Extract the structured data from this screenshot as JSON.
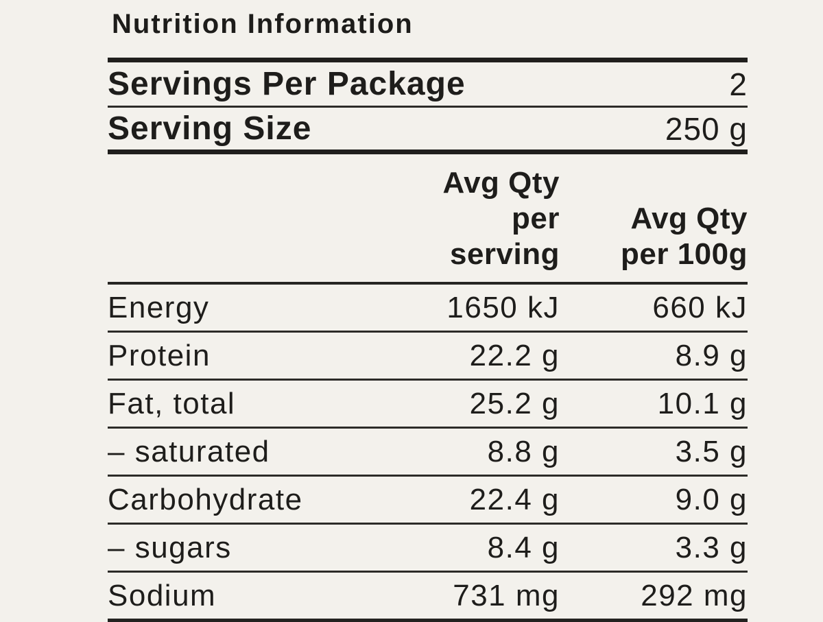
{
  "panel": {
    "title": "Nutrition Information",
    "meta_rows": [
      {
        "label": "Servings Per Package",
        "value": "2"
      },
      {
        "label": "Serving Size",
        "value": "250 g"
      }
    ],
    "column_headers": {
      "per_serving_line1": "Avg Qty",
      "per_serving_line2": "per serving",
      "per_100g_line1": "Avg Qty",
      "per_100g_line2": "per 100g"
    },
    "rows": [
      {
        "label": "Energy",
        "per_serving": "1650 kJ",
        "per_100g": "660 kJ"
      },
      {
        "label": "Protein",
        "per_serving": "22.2 g",
        "per_100g": "8.9 g"
      },
      {
        "label": "Fat, total",
        "per_serving": "25.2 g",
        "per_100g": "10.1 g"
      },
      {
        "label": "– saturated",
        "per_serving": "8.8 g",
        "per_100g": "3.5 g"
      },
      {
        "label": "Carbohydrate",
        "per_serving": "22.4 g",
        "per_100g": "9.0 g"
      },
      {
        "label": "– sugars",
        "per_serving": "8.4 g",
        "per_100g": "3.3 g"
      },
      {
        "label": "Sodium",
        "per_serving": "731 mg",
        "per_100g": "292 mg"
      }
    ],
    "colors": {
      "background": "#f3f1ec",
      "text": "#1e1d1b",
      "rule_thick": "#201f1d",
      "rule_thin": "#2c2b28"
    }
  }
}
